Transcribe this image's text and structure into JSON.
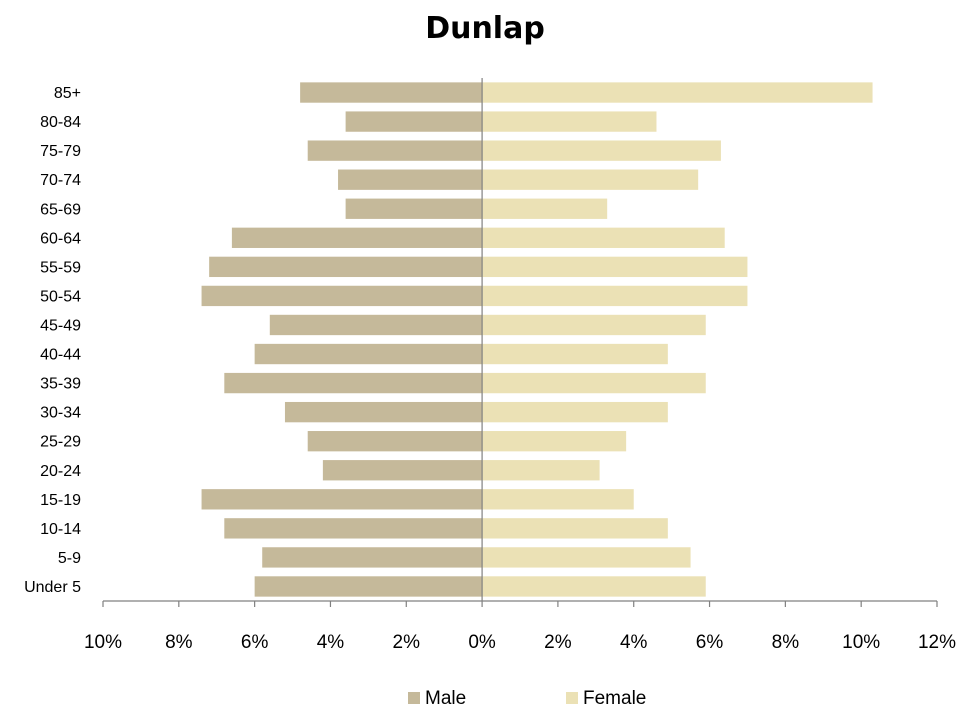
{
  "chart_data": {
    "type": "bar",
    "orientation": "horizontal-diverging",
    "title": "Dunlap",
    "categories": [
      "Under 5",
      "5-9",
      "10-14",
      "15-19",
      "20-24",
      "25-29",
      "30-34",
      "35-39",
      "40-44",
      "45-49",
      "50-54",
      "55-59",
      "60-64",
      "65-69",
      "70-74",
      "75-79",
      "80-84",
      "85+"
    ],
    "series": [
      {
        "name": "Male",
        "color": "#c5b99a",
        "side": "left",
        "values": [
          6.0,
          5.8,
          6.8,
          7.4,
          4.2,
          4.6,
          5.2,
          6.8,
          6.0,
          5.6,
          7.4,
          7.2,
          6.6,
          3.6,
          3.8,
          4.6,
          3.6,
          4.8
        ]
      },
      {
        "name": "Female",
        "color": "#ebe1b5",
        "side": "right",
        "values": [
          5.9,
          5.5,
          4.9,
          4.0,
          3.1,
          3.8,
          4.9,
          5.9,
          4.9,
          5.9,
          7.0,
          7.0,
          6.4,
          3.3,
          5.7,
          6.3,
          4.6,
          10.3
        ]
      }
    ],
    "xlim": [
      -10,
      12
    ],
    "x_ticks": [
      -10,
      -8,
      -6,
      -4,
      -2,
      0,
      2,
      4,
      6,
      8,
      10,
      12
    ],
    "x_tick_labels": [
      "10%",
      "8%",
      "6%",
      "4%",
      "2%",
      "0%",
      "2%",
      "4%",
      "6%",
      "8%",
      "10%",
      "12%"
    ],
    "xlabel": "",
    "ylabel": "",
    "grid": false,
    "legend_position": "bottom"
  }
}
